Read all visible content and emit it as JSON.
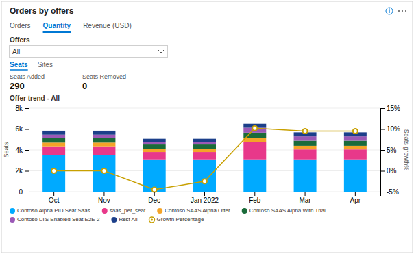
{
  "page": {
    "title": "Orders by offers",
    "tabs": [
      "Orders",
      "Quantity",
      "Revenue (USD)"
    ],
    "active_tab": "Quantity",
    "offers_label": "Offers",
    "offers_value": "All",
    "subtabs": [
      "Seats",
      "Sites"
    ],
    "active_subtab": "Seats",
    "seats_added_label": "Seats Added",
    "seats_added_value": 290,
    "seats_removed_label": "Seats Removed",
    "seats_removed_value": 0
  },
  "chart_data": {
    "type": "bar",
    "title": "Offer trend - All",
    "stacked": true,
    "grid": true,
    "legend": "bottom",
    "categories": [
      "Oct",
      "Nov",
      "Dec",
      "Jan 2022",
      "Feb",
      "Mar",
      "Apr"
    ],
    "ylabel": "Seats",
    "y2label": "Seats growth%",
    "ylim": [
      0,
      8000
    ],
    "yticks": [
      0,
      {
        "value": 2000,
        "label": "2k"
      },
      {
        "value": 4000,
        "label": "4k"
      },
      {
        "value": 6000,
        "label": "6k"
      },
      {
        "value": 8000,
        "label": "8k"
      }
    ],
    "y2lim": [
      -5,
      15
    ],
    "y2ticks": [
      {
        "value": -5,
        "label": "-5%"
      },
      {
        "value": 0,
        "label": "0%"
      },
      {
        "value": 5,
        "label": "5%"
      },
      {
        "value": 10,
        "label": "10%"
      },
      {
        "value": 15,
        "label": "15%"
      }
    ],
    "series": [
      {
        "name": "Contoso Alpha PID Seat Saas",
        "type": "bar",
        "color": "#00AAFF",
        "values": [
          3500,
          3500,
          3100,
          3100,
          3100,
          3100,
          3100
        ]
      },
      {
        "name": "saas_per_seat",
        "type": "bar",
        "color": "#E8388A",
        "values": [
          850,
          850,
          700,
          700,
          1650,
          950,
          950
        ]
      },
      {
        "name": "Contoso SAAS Alpha Offer",
        "type": "bar",
        "color": "#F4A428",
        "values": [
          350,
          350,
          300,
          300,
          380,
          350,
          350
        ]
      },
      {
        "name": "Contoso SAAS Alpha With Trial",
        "type": "bar",
        "color": "#1A6B3A",
        "values": [
          480,
          480,
          420,
          420,
          520,
          480,
          480
        ]
      },
      {
        "name": "Contoso LTS Enabled Seat E2E 2",
        "type": "bar",
        "color": "#9B59B6",
        "values": [
          280,
          280,
          230,
          230,
          480,
          420,
          420
        ]
      },
      {
        "name": "Rest All",
        "type": "bar",
        "color": "#1C3F8A",
        "values": [
          380,
          380,
          320,
          320,
          380,
          380,
          380
        ]
      },
      {
        "name": "Growth Percentage",
        "type": "line",
        "axis": "y2",
        "color": "#C8A000",
        "marker": "circle",
        "values": [
          0.0,
          0.0,
          -4.5,
          -2.5,
          10.2,
          9.5,
          9.5
        ]
      }
    ]
  }
}
